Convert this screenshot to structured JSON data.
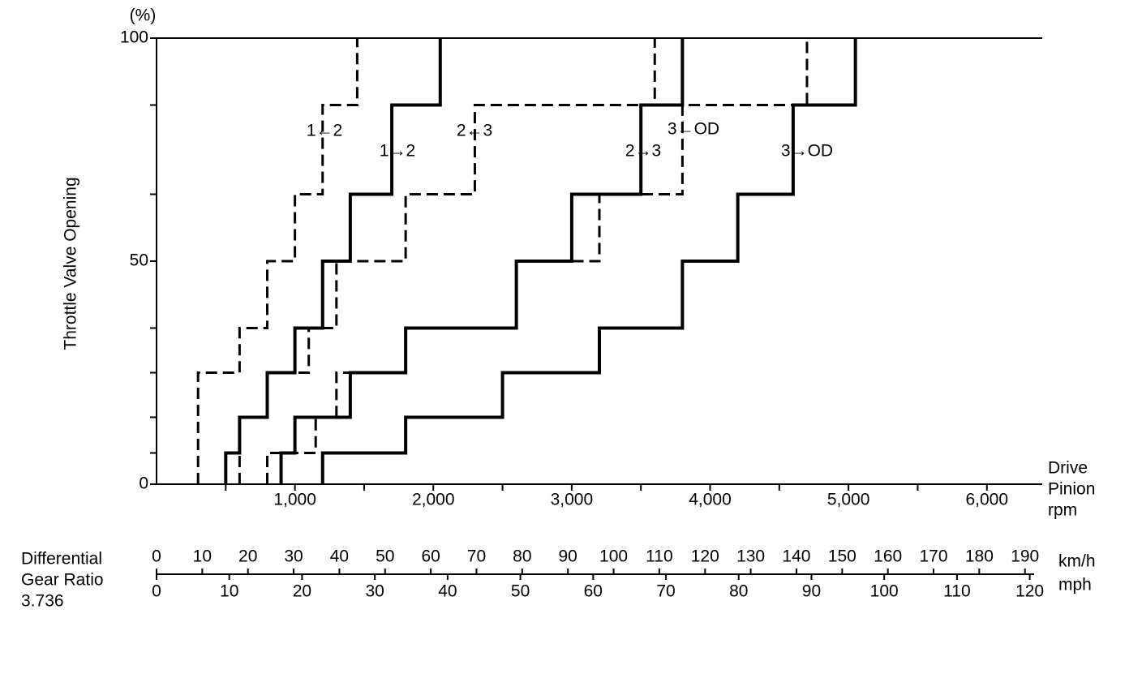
{
  "chart_data": {
    "type": "step",
    "y_label": "Throttle Valve Opening",
    "y_unit": "(%)",
    "x_label": [
      "Drive",
      "Pinion",
      "rpm"
    ],
    "xlim": [
      0,
      6400
    ],
    "ylim": [
      0,
      100
    ],
    "xticks": [
      {
        "value": 1000,
        "label": "1,000"
      },
      {
        "value": 2000,
        "label": "2,000"
      },
      {
        "value": 3000,
        "label": "3,000"
      },
      {
        "value": 4000,
        "label": "4,000"
      },
      {
        "value": 5000,
        "label": "5,000"
      },
      {
        "value": 6000,
        "label": "6,000"
      }
    ],
    "x_minor_ticks": [
      500,
      1500,
      2500,
      3500,
      4500,
      5500
    ],
    "yticks": [
      0,
      50,
      100
    ],
    "y_minor_ticks": [
      7,
      15,
      25,
      35,
      65,
      85
    ],
    "series": [
      {
        "name": "1←2",
        "color": "#000",
        "dashed": true,
        "x": [
          300,
          300,
          600,
          600,
          800,
          800,
          1000,
          1000,
          1200,
          1200,
          1450,
          1450
        ],
        "values": [
          0,
          25,
          25,
          35,
          35,
          50,
          50,
          65,
          65,
          85,
          85,
          100
        ]
      },
      {
        "name": "1→2",
        "color": "#000",
        "dashed": false,
        "x": [
          500,
          500,
          600,
          600,
          800,
          800,
          1000,
          1000,
          1200,
          1200,
          1400,
          1400,
          1700,
          1700,
          2050,
          2050
        ],
        "values": [
          0,
          7,
          7,
          15,
          15,
          25,
          25,
          35,
          35,
          50,
          50,
          65,
          65,
          85,
          85,
          100
        ]
      },
      {
        "name": "2←3",
        "color": "#000",
        "dashed": true,
        "x": [
          600,
          600,
          800,
          800,
          1100,
          1100,
          1300,
          1300,
          1800,
          1800,
          2300,
          2300,
          3600,
          3600
        ],
        "values": [
          0,
          15,
          15,
          25,
          25,
          35,
          35,
          50,
          50,
          65,
          65,
          85,
          85,
          100
        ]
      },
      {
        "name": "2→3",
        "color": "#000",
        "dashed": false,
        "x": [
          900,
          900,
          1000,
          1000,
          1400,
          1400,
          1800,
          1800,
          2600,
          2600,
          3000,
          3000,
          3500,
          3500,
          3800,
          3800
        ],
        "values": [
          0,
          7,
          7,
          15,
          15,
          25,
          25,
          35,
          35,
          50,
          50,
          65,
          65,
          85,
          85,
          100
        ]
      },
      {
        "name": "3←OD",
        "color": "#000",
        "dashed": true,
        "x": [
          800,
          800,
          1150,
          1150,
          1300,
          1300,
          1800,
          1800,
          2600,
          2600,
          3200,
          3200,
          3800,
          3800,
          4700,
          4700
        ],
        "values": [
          0,
          7,
          7,
          15,
          15,
          25,
          25,
          35,
          35,
          50,
          50,
          65,
          65,
          85,
          85,
          100
        ]
      },
      {
        "name": "3→OD",
        "color": "#000",
        "dashed": false,
        "x": [
          1200,
          1200,
          1800,
          1800,
          2500,
          2500,
          3200,
          3200,
          3800,
          3800,
          4200,
          4200,
          4600,
          4600,
          5050,
          5050
        ],
        "values": [
          0,
          7,
          7,
          15,
          15,
          25,
          25,
          35,
          35,
          50,
          50,
          65,
          65,
          85,
          85,
          100
        ]
      }
    ],
    "speed_scale": {
      "title": [
        "Differential",
        "Gear Ratio",
        "3.736"
      ],
      "kmh_unit": "km/h",
      "mph_unit": "mph",
      "kmh_lim": [
        0,
        192
      ],
      "mph_lim": [
        0,
        120.6
      ],
      "kmh_ticks": [
        0,
        10,
        20,
        30,
        40,
        50,
        60,
        70,
        80,
        90,
        100,
        110,
        120,
        130,
        140,
        150,
        160,
        170,
        180,
        190
      ],
      "mph_ticks": [
        0,
        10,
        20,
        30,
        40,
        50,
        60,
        70,
        80,
        90,
        100,
        110,
        120
      ]
    }
  }
}
